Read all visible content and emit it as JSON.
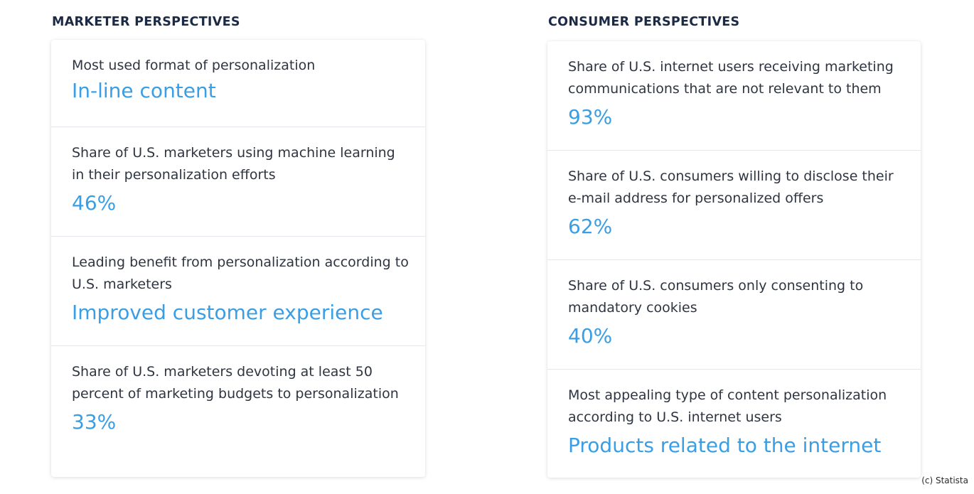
{
  "marketer": {
    "title": "MARKETER PERSPECTIVES",
    "items": [
      {
        "label": "Most used format of personalization",
        "value": "In-line content"
      },
      {
        "label": "Share of U.S. marketers using machine learning in their personalization efforts",
        "value": "46%"
      },
      {
        "label": "Leading benefit from personalization according to U.S. marketers",
        "value": "Improved customer experience"
      },
      {
        "label": "Share of U.S. marketers devoting at least 50 percent of marketing budgets to personalization",
        "value": "33%"
      }
    ]
  },
  "consumer": {
    "title": "CONSUMER PERSPECTIVES",
    "items": [
      {
        "label": "Share of U.S. internet users receiving marketing communications that are not relevant to them",
        "value": "93%"
      },
      {
        "label": "Share of U.S. consumers willing to disclose their e-mail address for personalized offers",
        "value": "62%"
      },
      {
        "label": "Share of U.S. consumers only consenting to mandatory cookies",
        "value": "40%"
      },
      {
        "label": "Most appealing type of content personalization according to U.S. internet users",
        "value": "Products related to the internet"
      }
    ]
  },
  "footer": {
    "copyright": "(c) Statista"
  },
  "colors": {
    "accent": "#3a9ee4",
    "heading": "#1b2a45",
    "text": "#2f3540"
  }
}
